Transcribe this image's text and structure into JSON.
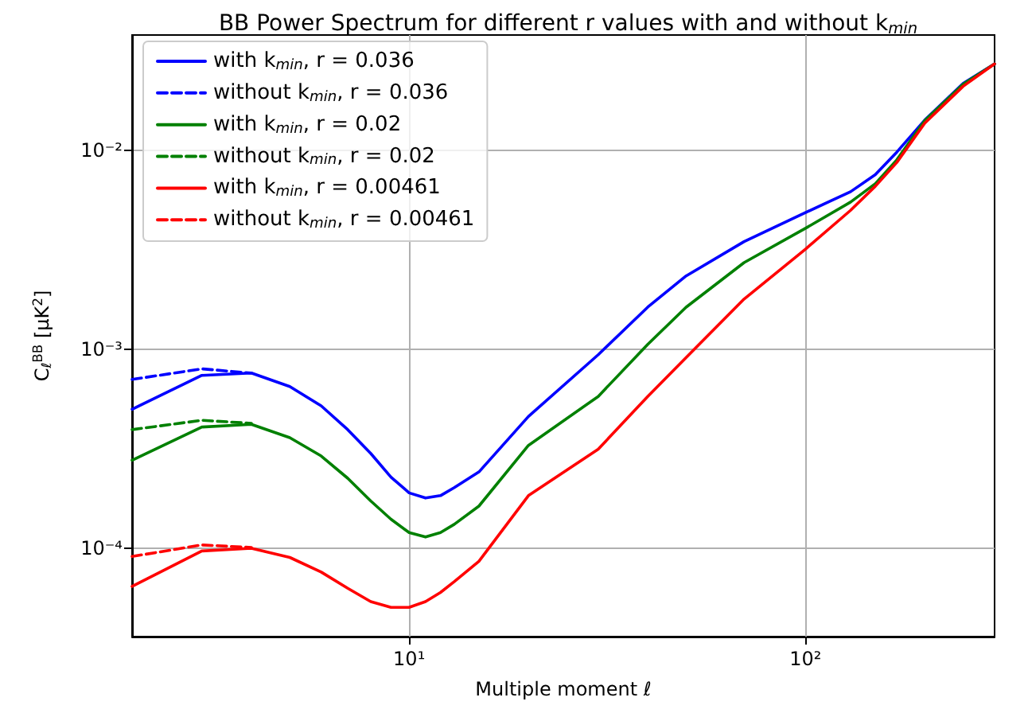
{
  "chart_data": {
    "type": "line",
    "title": "BB Power Spectrum for different r values with and without k$_{min}$",
    "xlabel": "Multiple moment ℓ",
    "ylabel": "C$_{ℓ}$$^{BB}$ [μK$^{2}$]",
    "log": "xy",
    "xlim": [
      2,
      300
    ],
    "xticks": [
      {
        "value": 10,
        "label": "10¹"
      },
      {
        "value": 100,
        "label": "10²"
      }
    ],
    "ylim": [
      3.6e-05,
      0.038
    ],
    "yticks": [
      {
        "value": 0.0001,
        "label": "10⁻⁴"
      },
      {
        "value": 0.001,
        "label": "10⁻³"
      },
      {
        "value": 0.01,
        "label": "10⁻²"
      }
    ],
    "grid": true,
    "legend": "top left",
    "marker": "none",
    "series": [
      {
        "name": "with k$_{min}$, r = 0.036",
        "color": "#0000ff",
        "line_style": "solid",
        "x": [
          2,
          3,
          4,
          5,
          6,
          7,
          8,
          9,
          10,
          11,
          12,
          13,
          15,
          20,
          30,
          40,
          50,
          70,
          100,
          130,
          150,
          170,
          200,
          250,
          300
        ],
        "values": [
          0.0005,
          0.00074,
          0.00076,
          0.00065,
          0.00052,
          0.000395,
          0.0003,
          0.000228,
          0.00019,
          0.000179,
          0.000184,
          0.000202,
          0.000242,
          0.00046,
          0.00094,
          0.00163,
          0.00234,
          0.00348,
          0.00487,
          0.0062,
          0.00755,
          0.0098,
          0.0142,
          0.0217,
          0.0272
        ]
      },
      {
        "name": "without k$_{min}$, r = 0.036",
        "color": "#0000ff",
        "line_style": "dashed",
        "x": [
          2,
          3,
          4
        ],
        "values": [
          0.000706,
          0.000798,
          0.00076
        ]
      },
      {
        "name": "with k$_{min}$, r = 0.02",
        "color": "#008000",
        "line_style": "solid",
        "x": [
          2,
          3,
          4,
          5,
          6,
          7,
          8,
          9,
          10,
          11,
          12,
          13,
          15,
          20,
          30,
          40,
          50,
          70,
          100,
          130,
          150,
          170,
          200,
          250,
          300
        ],
        "values": [
          0.000277,
          0.000407,
          0.00042,
          0.00036,
          0.000291,
          0.000225,
          0.000173,
          0.00014,
          0.00012,
          0.000114,
          0.00012,
          0.000132,
          0.000163,
          0.000329,
          0.00058,
          0.00106,
          0.00163,
          0.00273,
          0.00406,
          0.0055,
          0.0068,
          0.00896,
          0.0141,
          0.0215,
          0.0272
        ]
      },
      {
        "name": "without k$_{min}$, r = 0.02",
        "color": "#008000",
        "line_style": "dashed",
        "x": [
          2,
          3,
          4
        ],
        "values": [
          0.000395,
          0.00044,
          0.000425
        ]
      },
      {
        "name": "with k$_{min}$, r = 0.00461",
        "color": "#ff0000",
        "line_style": "solid",
        "x": [
          2,
          3,
          4,
          5,
          6,
          7,
          8,
          9,
          10,
          11,
          12,
          13,
          15,
          20,
          30,
          40,
          50,
          70,
          100,
          130,
          150,
          170,
          200,
          250,
          300
        ],
        "values": [
          6.44e-05,
          9.7e-05,
          0.0001,
          9e-05,
          7.6e-05,
          6.3e-05,
          5.4e-05,
          5.05e-05,
          5.05e-05,
          5.4e-05,
          6e-05,
          6.8e-05,
          8.6e-05,
          0.000184,
          0.000315,
          0.00058,
          0.00091,
          0.00179,
          0.00319,
          0.005,
          0.0066,
          0.0087,
          0.0137,
          0.021,
          0.0272
        ]
      },
      {
        "name": "without k$_{min}$, r = 0.00461",
        "color": "#ff0000",
        "line_style": "dashed",
        "x": [
          2,
          3,
          4
        ],
        "values": [
          9.1e-05,
          0.000104,
          0.000101
        ]
      }
    ]
  }
}
